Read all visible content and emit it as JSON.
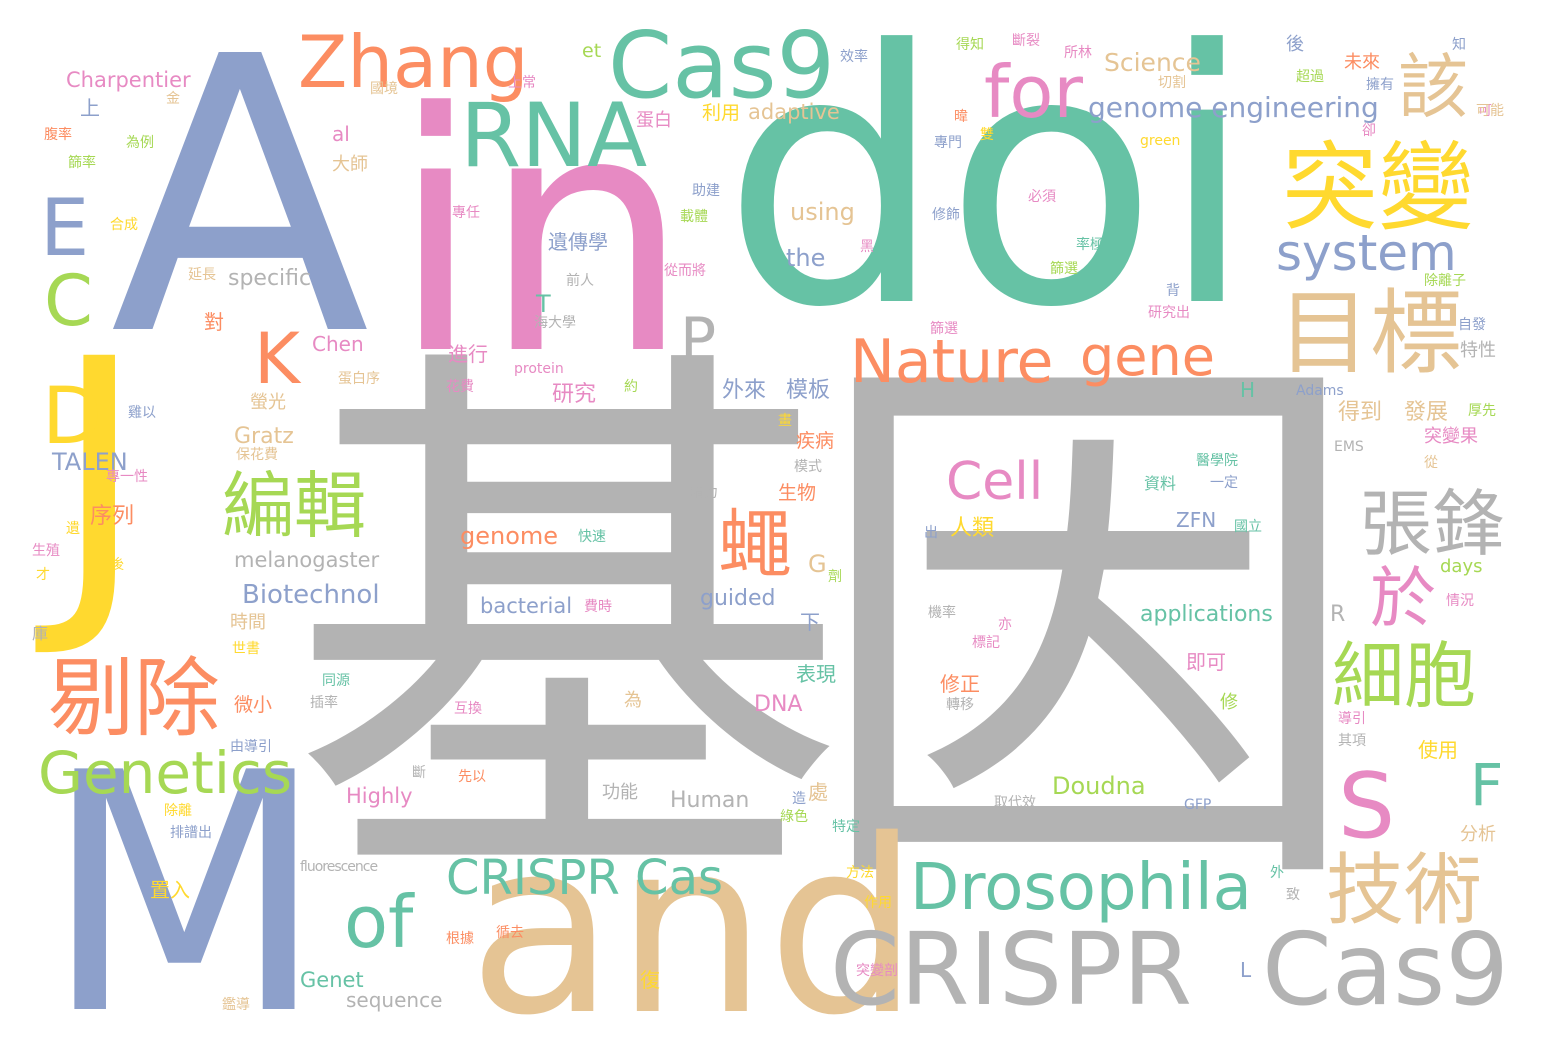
{
  "palette": {
    "blue": "#8da0cb",
    "green": "#66c2a5",
    "pink": "#e78ac3",
    "orange": "#fc8d62",
    "yellow": "#ffd92f",
    "tan": "#e5c494",
    "lime": "#a6d854",
    "gray": "#b3b3b3"
  },
  "words": [
    {
      "text": "基因",
      "color": "gray"
    },
    {
      "text": "doi",
      "color": "green"
    },
    {
      "text": "A",
      "color": "blue"
    },
    {
      "text": "in",
      "color": "pink"
    },
    {
      "text": "M",
      "color": "blue"
    },
    {
      "text": "and",
      "color": "tan"
    },
    {
      "text": "J",
      "color": "yellow"
    },
    {
      "text": "CRISPR",
      "color": "gray"
    },
    {
      "text": "Cas9",
      "color": "gray"
    },
    {
      "text": "Cas9",
      "color": "green"
    },
    {
      "text": "Zhang",
      "color": "orange"
    },
    {
      "text": "RNA",
      "color": "green"
    },
    {
      "text": "for",
      "color": "pink"
    },
    {
      "text": "該",
      "color": "tan"
    },
    {
      "text": "突變",
      "color": "yellow"
    },
    {
      "text": "目標",
      "color": "tan"
    },
    {
      "text": "system",
      "color": "blue"
    },
    {
      "text": "Nature",
      "color": "orange"
    },
    {
      "text": "gene",
      "color": "orange"
    },
    {
      "text": "P",
      "color": "gray"
    },
    {
      "text": "K",
      "color": "orange"
    },
    {
      "text": "E",
      "color": "blue"
    },
    {
      "text": "C",
      "color": "lime"
    },
    {
      "text": "D",
      "color": "yellow"
    },
    {
      "text": "編輯",
      "color": "lime"
    },
    {
      "text": "剔除",
      "color": "orange"
    },
    {
      "text": "Genetics",
      "color": "lime"
    },
    {
      "text": "蠅",
      "color": "orange"
    },
    {
      "text": "Cell",
      "color": "pink"
    },
    {
      "text": "張鋒",
      "color": "gray"
    },
    {
      "text": "於",
      "color": "pink"
    },
    {
      "text": "細胞",
      "color": "lime"
    },
    {
      "text": "S",
      "color": "pink"
    },
    {
      "text": "F",
      "color": "green"
    },
    {
      "text": "技術",
      "color": "tan"
    },
    {
      "text": "Drosophila",
      "color": "green"
    },
    {
      "text": "CRISPR Cas",
      "color": "green"
    },
    {
      "text": "of",
      "color": "green"
    },
    {
      "text": "genome engineering",
      "color": "blue"
    },
    {
      "text": "Science",
      "color": "tan"
    },
    {
      "text": "adaptive",
      "color": "tan"
    },
    {
      "text": "利用",
      "color": "yellow"
    },
    {
      "text": "using",
      "color": "tan"
    },
    {
      "text": "the",
      "color": "blue"
    },
    {
      "text": "Charpentier",
      "color": "pink"
    },
    {
      "text": "specific",
      "color": "gray"
    },
    {
      "text": "Chen",
      "color": "pink"
    },
    {
      "text": "TALEN",
      "color": "blue"
    },
    {
      "text": "Gratz",
      "color": "tan"
    },
    {
      "text": "melanogaster",
      "color": "gray"
    },
    {
      "text": "Biotechnol",
      "color": "blue"
    },
    {
      "text": "genome",
      "color": "orange"
    },
    {
      "text": "bacterial",
      "color": "blue"
    },
    {
      "text": "guided",
      "color": "blue"
    },
    {
      "text": "applications",
      "color": "green"
    },
    {
      "text": "Doudna",
      "color": "lime"
    },
    {
      "text": "Highly",
      "color": "pink"
    },
    {
      "text": "Human",
      "color": "gray"
    },
    {
      "text": "Genet",
      "color": "green"
    },
    {
      "text": "sequence",
      "color": "gray"
    },
    {
      "text": "fluorescence",
      "color": "gray"
    },
    {
      "text": "ZFN",
      "color": "blue"
    },
    {
      "text": "DNA",
      "color": "pink"
    },
    {
      "text": "protein",
      "color": "pink"
    },
    {
      "text": "green",
      "color": "yellow"
    },
    {
      "text": "Adams",
      "color": "blue"
    },
    {
      "text": "EMS",
      "color": "gray"
    },
    {
      "text": "GFP",
      "color": "blue"
    },
    {
      "text": "days",
      "color": "lime"
    },
    {
      "text": "et",
      "color": "lime"
    },
    {
      "text": "al",
      "color": "pink"
    },
    {
      "text": "T",
      "color": "green"
    },
    {
      "text": "G",
      "color": "tan"
    },
    {
      "text": "H",
      "color": "green"
    },
    {
      "text": "R",
      "color": "gray"
    },
    {
      "text": "L",
      "color": "blue"
    },
    {
      "text": "遺傳學",
      "color": "blue"
    },
    {
      "text": "外來",
      "color": "blue"
    },
    {
      "text": "模板",
      "color": "blue"
    },
    {
      "text": "研究",
      "color": "pink"
    },
    {
      "text": "進行",
      "color": "pink"
    },
    {
      "text": "得到",
      "color": "tan"
    },
    {
      "text": "發展",
      "color": "tan"
    },
    {
      "text": "突變果",
      "color": "pink"
    },
    {
      "text": "序列",
      "color": "orange"
    },
    {
      "text": "人類",
      "color": "yellow"
    },
    {
      "text": "生物",
      "color": "orange"
    },
    {
      "text": "疾病",
      "color": "orange"
    },
    {
      "text": "表現",
      "color": "green"
    },
    {
      "text": "修正",
      "color": "orange"
    },
    {
      "text": "即可",
      "color": "pink"
    },
    {
      "text": "使用",
      "color": "yellow"
    },
    {
      "text": "分析",
      "color": "tan"
    },
    {
      "text": "功能",
      "color": "gray"
    },
    {
      "text": "微小",
      "color": "orange"
    },
    {
      "text": "時間",
      "color": "tan"
    },
    {
      "text": "螢光",
      "color": "tan"
    },
    {
      "text": "置入",
      "color": "yellow"
    },
    {
      "text": "未來",
      "color": "orange"
    },
    {
      "text": "大師",
      "color": "tan"
    },
    {
      "text": "蛋白",
      "color": "pink"
    },
    {
      "text": "資料",
      "color": "green"
    },
    {
      "text": "上",
      "color": "blue"
    },
    {
      "text": "對",
      "color": "orange"
    },
    {
      "text": "下",
      "color": "blue"
    },
    {
      "text": "處",
      "color": "tan"
    },
    {
      "text": "復",
      "color": "yellow"
    },
    {
      "text": "為",
      "color": "tan"
    },
    {
      "text": "修",
      "color": "lime"
    },
    {
      "text": "後",
      "color": "blue"
    },
    {
      "text": "可",
      "color": "pink"
    },
    {
      "text": "為例",
      "color": "lime"
    },
    {
      "text": "合成",
      "color": "yellow"
    },
    {
      "text": "效率",
      "color": "blue"
    },
    {
      "text": "上常",
      "color": "pink"
    },
    {
      "text": "國境",
      "color": "tan"
    },
    {
      "text": "金",
      "color": "tan"
    },
    {
      "text": "得知",
      "color": "lime"
    },
    {
      "text": "斷裂",
      "color": "pink"
    },
    {
      "text": "所林",
      "color": "pink"
    },
    {
      "text": "切割",
      "color": "tan"
    },
    {
      "text": "超過",
      "color": "lime"
    },
    {
      "text": "擁有",
      "color": "blue"
    },
    {
      "text": "可能",
      "color": "tan"
    },
    {
      "text": "卻",
      "color": "pink"
    },
    {
      "text": "知",
      "color": "blue"
    },
    {
      "text": "專門",
      "color": "blue"
    },
    {
      "text": "雙",
      "color": "yellow"
    },
    {
      "text": "暐",
      "color": "orange"
    },
    {
      "text": "必須",
      "color": "pink"
    },
    {
      "text": "修飾",
      "color": "blue"
    },
    {
      "text": "載體",
      "color": "lime"
    },
    {
      "text": "從而將",
      "color": "pink"
    },
    {
      "text": "專任",
      "color": "pink"
    },
    {
      "text": "前人",
      "color": "gray"
    },
    {
      "text": "海大學",
      "color": "gray"
    },
    {
      "text": "黑",
      "color": "pink"
    },
    {
      "text": "率極",
      "color": "green"
    },
    {
      "text": "篩選",
      "color": "lime"
    },
    {
      "text": "背",
      "color": "blue"
    },
    {
      "text": "研究出",
      "color": "pink"
    },
    {
      "text": "除離子",
      "color": "lime"
    },
    {
      "text": "自發",
      "color": "blue"
    },
    {
      "text": "特性",
      "color": "gray"
    },
    {
      "text": "厚先",
      "color": "lime"
    },
    {
      "text": "從",
      "color": "tan"
    },
    {
      "text": "情況",
      "color": "pink"
    },
    {
      "text": "國立",
      "color": "green"
    },
    {
      "text": "一定",
      "color": "blue"
    },
    {
      "text": "醫學院",
      "color": "green"
    },
    {
      "text": "出",
      "color": "blue"
    },
    {
      "text": "機率",
      "color": "gray"
    },
    {
      "text": "亦",
      "color": "pink"
    },
    {
      "text": "標記",
      "color": "pink"
    },
    {
      "text": "導引",
      "color": "pink"
    },
    {
      "text": "其項",
      "color": "gray"
    },
    {
      "text": "轉移",
      "color": "gray"
    },
    {
      "text": "取代效",
      "color": "gray"
    },
    {
      "text": "造",
      "color": "blue"
    },
    {
      "text": "綠色",
      "color": "lime"
    },
    {
      "text": "特定",
      "color": "green"
    },
    {
      "text": "方法",
      "color": "yellow"
    },
    {
      "text": "作用",
      "color": "yellow"
    },
    {
      "text": "外",
      "color": "green"
    },
    {
      "text": "致",
      "color": "gray"
    },
    {
      "text": "突變剖",
      "color": "pink"
    },
    {
      "text": "根據",
      "color": "orange"
    },
    {
      "text": "循去",
      "color": "orange"
    },
    {
      "text": "由導引",
      "color": "blue"
    },
    {
      "text": "同源",
      "color": "green"
    },
    {
      "text": "插率",
      "color": "gray"
    },
    {
      "text": "互換",
      "color": "pink"
    },
    {
      "text": "斷",
      "color": "gray"
    },
    {
      "text": "先以",
      "color": "orange"
    },
    {
      "text": "排譜出",
      "color": "blue"
    },
    {
      "text": "鑑導",
      "color": "tan"
    },
    {
      "text": "除離",
      "color": "yellow"
    },
    {
      "text": "保花費",
      "color": "tan"
    },
    {
      "text": "花費",
      "color": "pink"
    },
    {
      "text": "約",
      "color": "lime"
    },
    {
      "text": "蛋白序",
      "color": "tan"
    },
    {
      "text": "雞以",
      "color": "blue"
    },
    {
      "text": "畫",
      "color": "yellow"
    },
    {
      "text": "模式",
      "color": "gray"
    },
    {
      "text": "精力",
      "color": "gray"
    },
    {
      "text": "劑",
      "color": "lime"
    },
    {
      "text": "快速",
      "color": "green"
    },
    {
      "text": "費時",
      "color": "pink"
    },
    {
      "text": "世書",
      "color": "yellow"
    },
    {
      "text": "專一性",
      "color": "pink"
    },
    {
      "text": "後",
      "color": "yellow"
    },
    {
      "text": "生殖",
      "color": "pink"
    },
    {
      "text": "才",
      "color": "yellow"
    },
    {
      "text": "庫",
      "color": "gray"
    },
    {
      "text": "遺",
      "color": "yellow"
    },
    {
      "text": "篩率",
      "color": "lime"
    },
    {
      "text": "腹率",
      "color": "orange"
    },
    {
      "text": "延長",
      "color": "tan"
    },
    {
      "text": "助建",
      "color": "blue"
    },
    {
      "text": "篩選",
      "color": "pink"
    }
  ]
}
